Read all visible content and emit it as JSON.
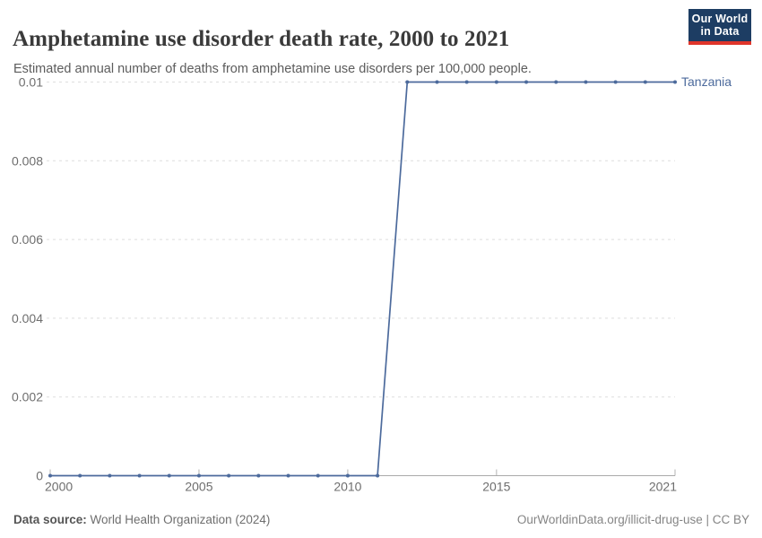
{
  "header": {
    "title": "Amphetamine use disorder death rate, 2000 to 2021",
    "subtitle": "Estimated annual number of deaths from amphetamine use disorders per 100,000 people."
  },
  "logo": {
    "line1": "Our World",
    "line2": "in Data",
    "bg_color": "#1d3d63",
    "accent_color": "#e0352b"
  },
  "chart_data": {
    "type": "line",
    "title": "Amphetamine use disorder death rate, 2000 to 2021",
    "subtitle": "Estimated annual number of deaths from amphetamine use disorders per 100,000 people.",
    "xlabel": "",
    "ylabel": "",
    "x": [
      2000,
      2001,
      2002,
      2003,
      2004,
      2005,
      2006,
      2007,
      2008,
      2009,
      2010,
      2011,
      2012,
      2013,
      2014,
      2015,
      2016,
      2017,
      2018,
      2019,
      2020,
      2021
    ],
    "series": [
      {
        "name": "Tanzania",
        "color": "#4c6a9c",
        "values": [
          0,
          0,
          0,
          0,
          0,
          0,
          0,
          0,
          0,
          0,
          0,
          0,
          0.01,
          0.01,
          0.01,
          0.01,
          0.01,
          0.01,
          0.01,
          0.01,
          0.01,
          0.01
        ]
      }
    ],
    "xlim": [
      2000,
      2021
    ],
    "ylim": [
      0,
      0.01
    ],
    "xtick_values": [
      2000,
      2005,
      2010,
      2015,
      2021
    ],
    "xtick_labels": [
      "2000",
      "2005",
      "2010",
      "2015",
      "2021"
    ],
    "ytick_values": [
      0,
      0.002,
      0.004,
      0.006,
      0.008,
      0.01
    ],
    "ytick_labels": [
      "0",
      "0.002",
      "0.004",
      "0.006",
      "0.008",
      "0.01"
    ],
    "grid": "horizontal-dashed",
    "legend_position": "end-of-line",
    "colors": {
      "grid": "#dedede",
      "axis": "#a9a9a9",
      "tick": "#b3b3b3",
      "tick_label": "#6e6e6e"
    }
  },
  "footer": {
    "source_label": "Data source:",
    "source_value": " World Health Organization (2024)",
    "link": "OurWorldinData.org/illicit-drug-use | CC BY"
  }
}
